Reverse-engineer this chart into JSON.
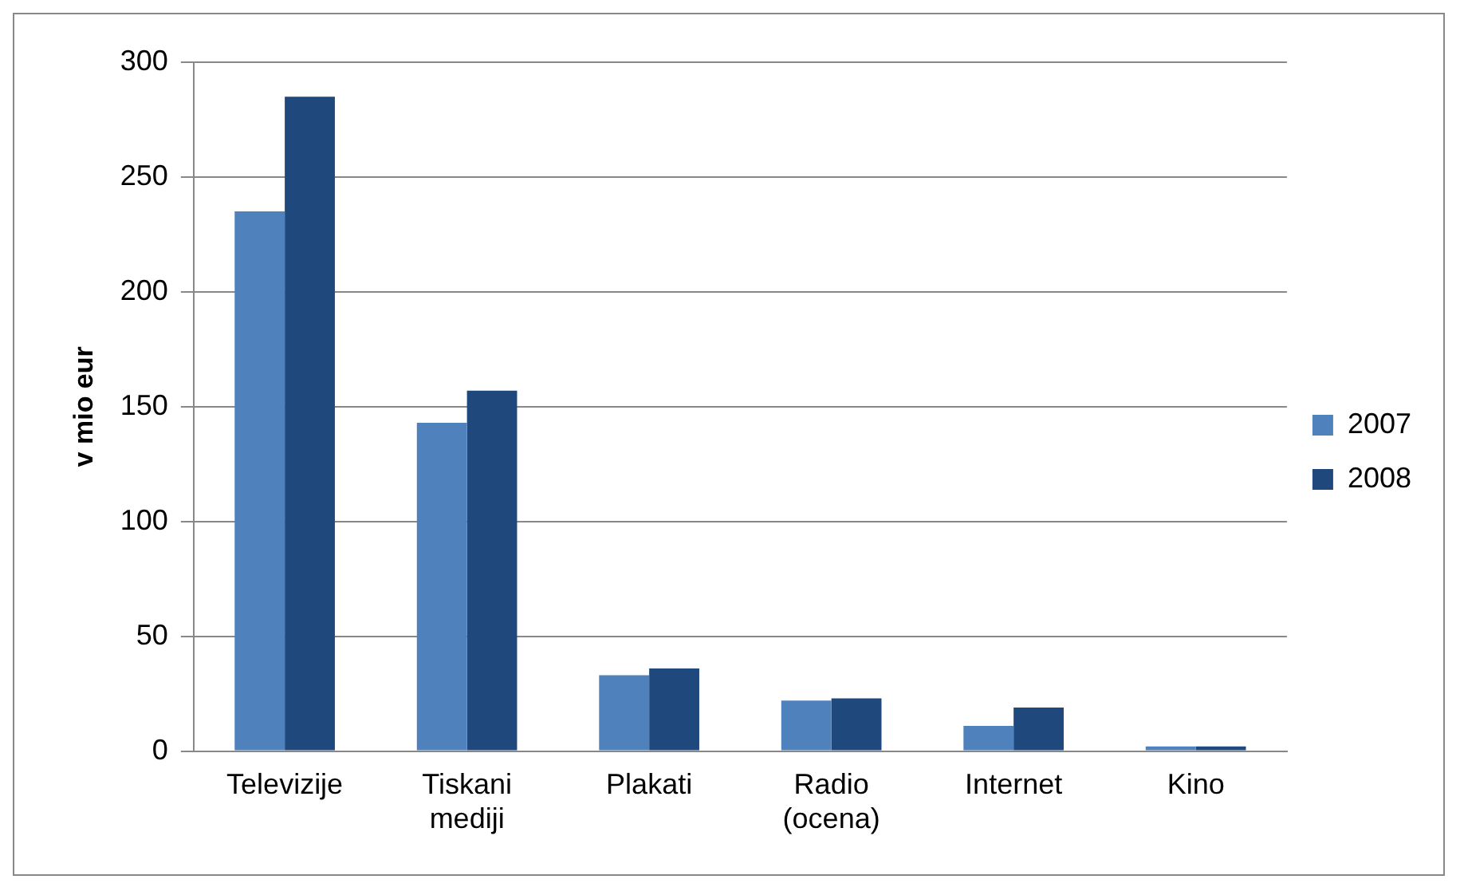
{
  "chart_data": {
    "type": "bar",
    "ylabel": "v mio eur",
    "categories": [
      "Televizije",
      "Tiskani mediji",
      "Plakati",
      "Radio (ocena)",
      "Internet",
      "Kino"
    ],
    "series": [
      {
        "name": "2007",
        "color": "#4f81bd",
        "values": [
          235,
          143,
          33,
          22,
          11,
          2
        ]
      },
      {
        "name": "2008",
        "color": "#1f497d",
        "values": [
          285,
          157,
          36,
          23,
          19,
          2
        ]
      }
    ],
    "ylim": [
      0,
      300
    ],
    "yticks": [
      0,
      50,
      100,
      150,
      200,
      250,
      300
    ],
    "grid": "y",
    "legend": "right"
  }
}
